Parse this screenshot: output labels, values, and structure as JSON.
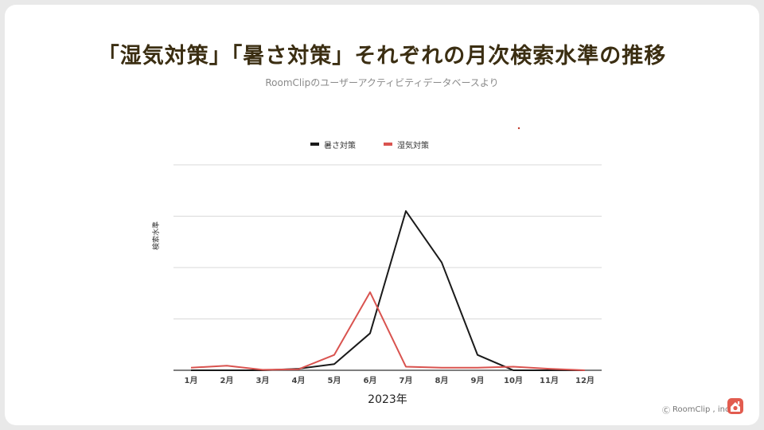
{
  "header": {
    "title": "「湿気対策」「暑さ対策」それぞれの月次検索水準の推移",
    "subtitle": "RoomClipのユーザーアクティビティデータベースより"
  },
  "footer": {
    "copyright": "RoomClip , inc",
    "copyright_symbol": "Ⓒ"
  },
  "colors": {
    "accent": "#e25c4f",
    "series_heat": "#1a1a1a",
    "series_humidity": "#d9534f"
  },
  "chart_data": {
    "type": "line",
    "title": "「湿気対策」「暑さ対策」それぞれの月次検索水準の推移",
    "xlabel": "2023年",
    "ylabel": "検索水準",
    "categories": [
      "1月",
      "2月",
      "3月",
      "4月",
      "5月",
      "6月",
      "7月",
      "8月",
      "9月",
      "10月",
      "11月",
      "12月"
    ],
    "ylim": [
      0,
      4
    ],
    "grid": true,
    "legend_position": "top-center",
    "series": [
      {
        "name": "暑さ対策",
        "color": "#1a1a1a",
        "values": [
          0.0,
          0.0,
          0.0,
          0.03,
          0.12,
          0.72,
          3.1,
          2.1,
          0.3,
          0.0,
          0.0,
          0.0
        ]
      },
      {
        "name": "湿気対策",
        "color": "#d9534f",
        "values": [
          0.05,
          0.09,
          0.01,
          0.02,
          0.3,
          1.52,
          0.07,
          0.05,
          0.05,
          0.07,
          0.03,
          0.0
        ]
      }
    ]
  }
}
